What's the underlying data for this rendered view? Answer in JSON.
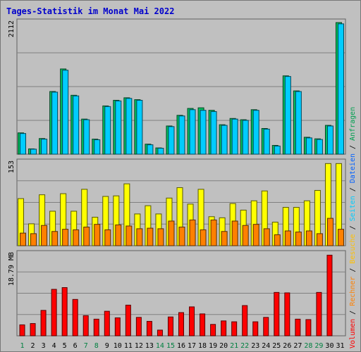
{
  "title": "Tages-Statistik im Monat Mai 2022",
  "chart_data": [
    {
      "type": "bar",
      "categories": [
        "1",
        "2",
        "3",
        "4",
        "5",
        "6",
        "7",
        "8",
        "9",
        "10",
        "11",
        "12",
        "13",
        "14",
        "15",
        "16",
        "17",
        "18",
        "19",
        "20",
        "21",
        "22",
        "23",
        "24",
        "25",
        "26",
        "27",
        "28",
        "29",
        "30",
        "31"
      ],
      "weekend_days": [
        "1",
        "7",
        "8",
        "14",
        "15",
        "21",
        "22",
        "28",
        "29"
      ],
      "y_tick_label": "2112",
      "ylim": [
        0,
        2112
      ],
      "grid": true,
      "series": [
        {
          "name": "Anfragen",
          "color": "#00c060",
          "values": [
            340,
            85,
            250,
            1000,
            1360,
            940,
            560,
            240,
            770,
            860,
            900,
            870,
            160,
            100,
            450,
            620,
            730,
            740,
            700,
            470,
            570,
            550,
            710,
            410,
            140,
            1250,
            1010,
            270,
            245,
            460,
            2100
          ]
        },
        {
          "name": "Dateien",
          "color": "#00ccff",
          "values": [
            330,
            80,
            240,
            990,
            1340,
            930,
            550,
            230,
            760,
            850,
            890,
            860,
            150,
            95,
            440,
            610,
            710,
            700,
            680,
            460,
            560,
            540,
            700,
            400,
            130,
            1240,
            1000,
            260,
            235,
            450,
            2080
          ]
        }
      ]
    },
    {
      "type": "bar",
      "categories": [
        "1",
        "2",
        "3",
        "4",
        "5",
        "6",
        "7",
        "8",
        "9",
        "10",
        "11",
        "12",
        "13",
        "14",
        "15",
        "16",
        "17",
        "18",
        "19",
        "20",
        "21",
        "22",
        "23",
        "24",
        "25",
        "26",
        "27",
        "28",
        "29",
        "30",
        "31"
      ],
      "y_tick_label": "153",
      "ylim": [
        0,
        153
      ],
      "grid": true,
      "series": [
        {
          "name": "Seiten",
          "color": "#ffff00",
          "values": [
            86,
            40,
            93,
            63,
            95,
            63,
            103,
            52,
            90,
            91,
            113,
            58,
            73,
            58,
            87,
            106,
            76,
            103,
            53,
            51,
            77,
            65,
            82,
            100,
            43,
            70,
            70,
            82,
            101,
            150,
            150
          ]
        },
        {
          "name": "Besuche",
          "color": "#ff8000",
          "values": [
            23,
            22,
            37,
            26,
            30,
            29,
            34,
            39,
            29,
            38,
            36,
            31,
            32,
            31,
            45,
            34,
            47,
            29,
            47,
            26,
            45,
            37,
            39,
            31,
            20,
            27,
            25,
            27,
            22,
            50,
            30
          ]
        }
      ]
    },
    {
      "type": "bar",
      "categories": [
        "1",
        "2",
        "3",
        "4",
        "5",
        "6",
        "7",
        "8",
        "9",
        "10",
        "11",
        "12",
        "13",
        "14",
        "15",
        "16",
        "17",
        "18",
        "19",
        "20",
        "21",
        "22",
        "23",
        "24",
        "25",
        "26",
        "27",
        "28",
        "29",
        "30",
        "31"
      ],
      "y_tick_label": "18.79 MB",
      "ylim": [
        0,
        18.79
      ],
      "grid": true,
      "series": [
        {
          "name": "Volumen",
          "color": "#ff0000",
          "values": [
            2.5,
            2.8,
            5.8,
            10.6,
            11.0,
            8.3,
            4.6,
            3.8,
            5.6,
            4.1,
            7.0,
            4.2,
            3.3,
            1.3,
            4.3,
            5.3,
            6.6,
            5.0,
            2.6,
            3.4,
            3.2,
            6.9,
            3.2,
            4.2,
            9.9,
            9.8,
            3.8,
            3.7,
            9.9,
            18.4,
            0
          ]
        }
      ]
    }
  ],
  "legend": {
    "anfragen": "Anfragen",
    "sep1": " / ",
    "dateien": "Dateien",
    "sep2": " / ",
    "seiten": "Seiten",
    "sep3": " / ",
    "besuche": "Besuche",
    "sep4": " / ",
    "rechner": "Rechner",
    "sep5": " / ",
    "volumen": "Volumen",
    "colors": {
      "anfragen": "#00a050",
      "dateien": "#0060ff",
      "seiten": "#00ccff",
      "besuche": "#ffc000",
      "rechner": "#ff8000",
      "volumen": "#ff0000"
    }
  },
  "colors": {
    "background": "#c0c0c0",
    "grid": "#808080",
    "weekday_label": "#000000",
    "weekend_label": "#008040",
    "title": "#0000cc"
  }
}
